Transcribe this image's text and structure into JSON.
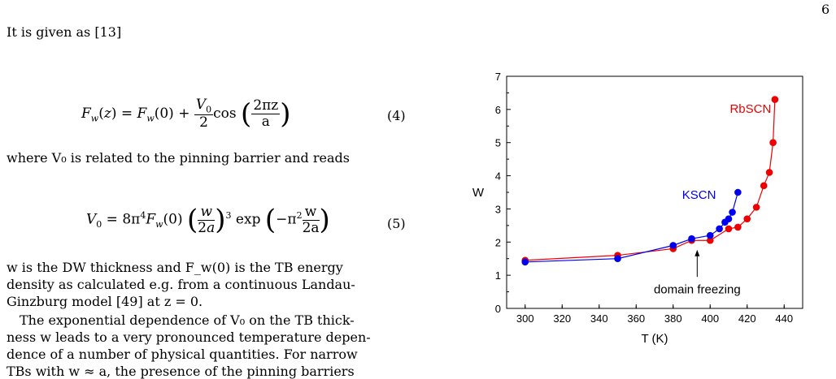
{
  "page_number": "6",
  "text": {
    "intro": "It is given as [13]",
    "after_eq4": "where V₀ is related to the pinning barrier and reads",
    "p1_l1": "w is the DW thickness and F_w(0) is the TB energy",
    "p1_l2": "density as calculated e.g.  from a continuous Landau-",
    "p1_l3": "Ginzburg model [49] at z = 0.",
    "p2_l1": "The exponential dependence of V₀ on the TB thick-",
    "p2_l2": "ness w leads to a very pronounced temperature depen-",
    "p2_l3": "dence of a number of physical quantities.  For narrow",
    "p2_l4": "TBs with w ≈ a, the presence of the pinning barriers"
  },
  "equations": {
    "eq4_number": "(4)",
    "eq5_number": "(5)"
  },
  "chart_data": {
    "type": "scatter",
    "xlabel": "T (K)",
    "ylabel": "W",
    "xlim": [
      290,
      450
    ],
    "ylim": [
      0,
      7
    ],
    "xticks": [
      300,
      320,
      340,
      360,
      380,
      400,
      420,
      440
    ],
    "yticks": [
      0,
      1,
      2,
      3,
      4,
      5,
      6,
      7
    ],
    "series": [
      {
        "name": "RbSCN",
        "color": "#ee0000",
        "x": [
          300,
          350,
          380,
          390,
          400,
          410,
          415,
          420,
          425,
          429,
          432,
          434,
          435
        ],
        "y": [
          1.45,
          1.6,
          1.8,
          2.05,
          2.05,
          2.4,
          2.45,
          2.7,
          3.05,
          3.7,
          4.1,
          5.0,
          6.3
        ]
      },
      {
        "name": "KSCN",
        "color": "#0000ee",
        "x": [
          300,
          350,
          380,
          390,
          400,
          405,
          408,
          410,
          412,
          415
        ],
        "y": [
          1.4,
          1.5,
          1.9,
          2.1,
          2.2,
          2.4,
          2.6,
          2.7,
          2.9,
          3.5
        ]
      }
    ],
    "annotation": {
      "text": "domain freezing",
      "x": 393,
      "y": 1.5
    }
  }
}
